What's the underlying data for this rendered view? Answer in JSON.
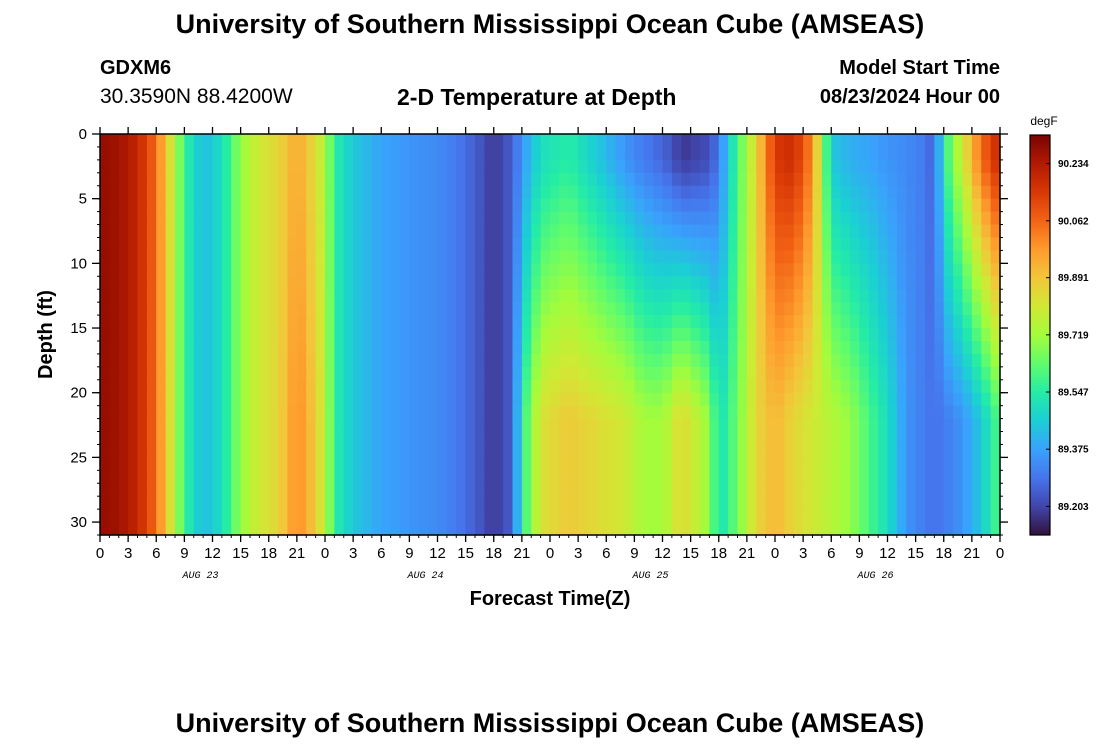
{
  "header": {
    "title": "University of Southern Mississippi Ocean Cube (AMSEAS)",
    "station_name": "GDXM6",
    "station_coords": "30.3590N  88.4200W",
    "plot_title": "2-D Temperature at Depth",
    "model_start_label": "Model Start Time",
    "model_start_value": "08/23/2024 Hour 00"
  },
  "footer": {
    "title": "University of Southern Mississippi Ocean Cube (AMSEAS)"
  },
  "colors": {
    "colormap": [
      "#30123b",
      "#4145ab",
      "#4675ed",
      "#39a2fc",
      "#1bcfd4",
      "#24eca6",
      "#61fc6c",
      "#a4fc3b",
      "#d1e834",
      "#f3c63a",
      "#fe9b2d",
      "#f36315",
      "#d93806",
      "#b11901",
      "#7a0402"
    ],
    "axis": "#000000"
  },
  "chart_data": {
    "type": "heatmap",
    "title": "2-D Temperature at Depth",
    "xlabel": "Forecast Time(Z)",
    "ylabel": "Depth (ft)",
    "x_range_hours": [
      0,
      96
    ],
    "xlim": [
      0,
      96
    ],
    "ylim": [
      0,
      31
    ],
    "y_inverted": true,
    "xtick_labels": [
      "0",
      "3",
      "6",
      "9",
      "12",
      "15",
      "18",
      "21",
      "0",
      "3",
      "6",
      "9",
      "12",
      "15",
      "18",
      "21",
      "0",
      "3",
      "6",
      "9",
      "12",
      "15",
      "18",
      "21",
      "0",
      "3",
      "6",
      "9",
      "12",
      "15",
      "18",
      "21",
      "0"
    ],
    "ytick_labels": [
      "0",
      "5",
      "10",
      "15",
      "20",
      "25",
      "30"
    ],
    "ytick_values": [
      0,
      5,
      10,
      15,
      20,
      25,
      30
    ],
    "date_labels": [
      "AUG 23",
      "AUG 24",
      "AUG 25",
      "AUG 26"
    ],
    "colorbar": {
      "unit": "degF",
      "range": [
        89.117,
        90.32
      ],
      "tick_labels": [
        "90.234",
        "90.062",
        "89.891",
        "89.719",
        "89.547",
        "89.375",
        "89.203"
      ],
      "tick_values": [
        90.234,
        90.062,
        89.891,
        89.719,
        89.547,
        89.375,
        89.203
      ]
    },
    "grid": false,
    "time_step_hours": 1,
    "depth_step_ft": 1,
    "surface_profile_by_hour": {
      "hours": [
        0,
        2,
        4,
        6,
        8,
        9,
        11,
        13,
        15,
        17,
        19,
        21,
        22,
        24,
        25,
        27,
        30,
        33,
        36,
        38,
        40,
        42,
        44,
        45,
        47,
        50,
        56,
        58,
        60,
        61,
        62,
        65,
        66,
        68,
        70,
        72,
        74,
        76,
        78,
        80,
        82,
        84,
        86,
        88,
        89,
        90,
        92,
        94,
        96
      ],
      "degF": [
        90.28,
        90.26,
        90.2,
        90.05,
        89.75,
        89.57,
        89.42,
        89.5,
        89.7,
        89.8,
        89.85,
        89.95,
        89.9,
        89.75,
        89.55,
        89.45,
        89.38,
        89.35,
        89.33,
        89.3,
        89.25,
        89.18,
        89.25,
        89.35,
        89.5,
        89.55,
        89.35,
        89.3,
        89.26,
        89.23,
        89.18,
        89.22,
        89.3,
        89.6,
        89.85,
        90.15,
        90.18,
        90.0,
        89.45,
        89.4,
        89.38,
        89.35,
        89.33,
        89.3,
        89.25,
        89.55,
        89.8,
        90.05,
        90.2
      ]
    },
    "deep_profile_by_hour": {
      "hours": [
        0,
        2,
        4,
        6,
        8,
        9,
        11,
        13,
        15,
        17,
        19,
        21,
        22,
        24,
        25,
        27,
        30,
        33,
        36,
        38,
        40,
        42,
        44,
        45,
        47,
        50,
        56,
        58,
        60,
        61,
        62,
        65,
        66,
        68,
        70,
        72,
        74,
        76,
        78,
        80,
        82,
        84,
        86,
        88,
        89,
        90,
        92,
        94,
        96
      ],
      "degF": [
        90.28,
        90.26,
        90.2,
        90.05,
        89.75,
        89.57,
        89.42,
        89.5,
        89.7,
        89.8,
        89.85,
        90.0,
        89.95,
        89.78,
        89.55,
        89.45,
        89.38,
        89.35,
        89.33,
        89.3,
        89.25,
        89.18,
        89.25,
        89.55,
        89.82,
        89.88,
        89.8,
        89.72,
        89.72,
        89.78,
        89.85,
        89.7,
        89.5,
        89.65,
        89.85,
        89.92,
        89.85,
        89.8,
        89.75,
        89.7,
        89.6,
        89.5,
        89.35,
        89.3,
        89.28,
        89.3,
        89.35,
        89.45,
        89.62
      ]
    }
  }
}
